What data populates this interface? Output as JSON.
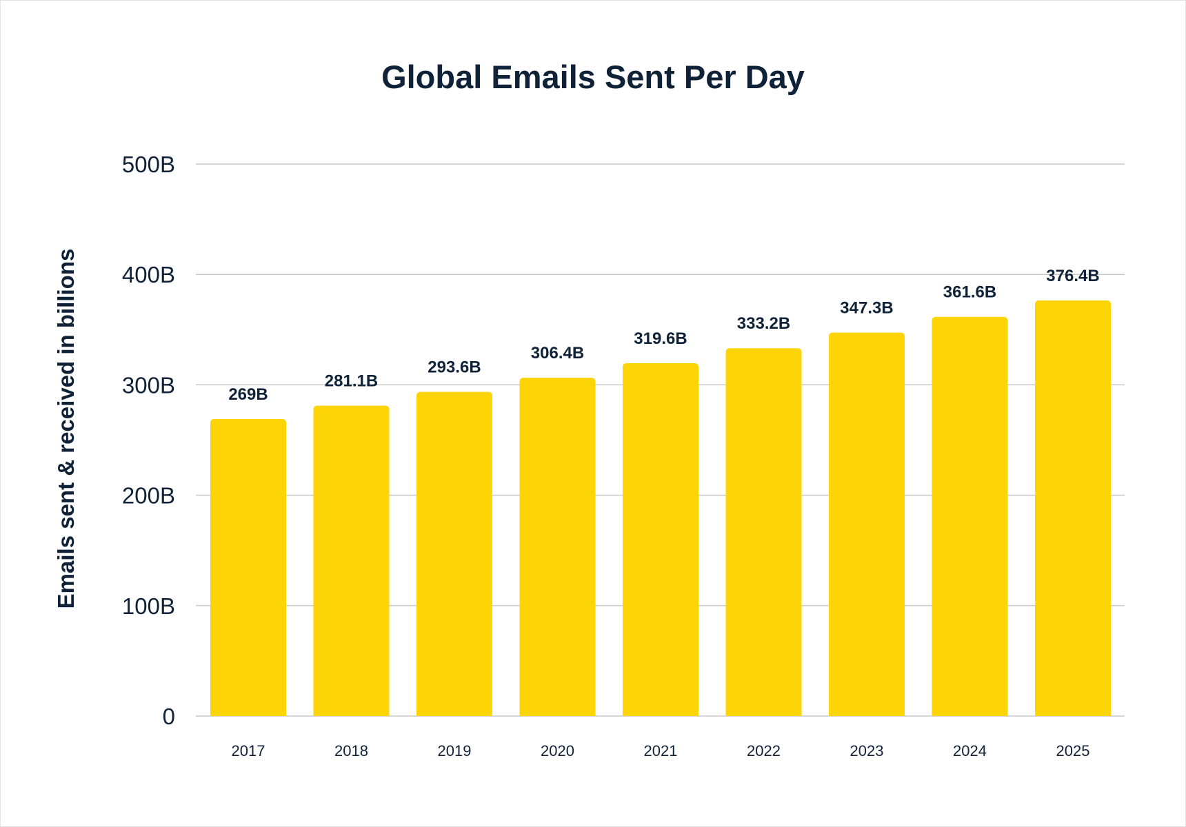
{
  "chart_data": {
    "type": "bar",
    "title": "Global Emails Sent Per Day",
    "ylabel": "Emails sent & received in billions",
    "xlabel": "",
    "categories": [
      "2017",
      "2018",
      "2019",
      "2020",
      "2021",
      "2022",
      "2023",
      "2024",
      "2025"
    ],
    "values": [
      269,
      281.1,
      293.6,
      306.4,
      319.6,
      333.2,
      347.3,
      361.6,
      376.4
    ],
    "data_labels": [
      "269B",
      "281.1B",
      "293.6B",
      "306.4B",
      "319.6B",
      "333.2B",
      "347.3B",
      "361.6B",
      "376.4B"
    ],
    "ylim": [
      0,
      500
    ],
    "yticks": [
      0,
      100,
      200,
      300,
      400,
      500
    ],
    "ytick_labels": [
      "0",
      "100B",
      "200B",
      "300B",
      "400B",
      "500B"
    ],
    "grid": true,
    "legend": "none",
    "bar_color": "#FDD506",
    "text_color": "#0F2238",
    "grid_color": "#C9C9C9"
  }
}
